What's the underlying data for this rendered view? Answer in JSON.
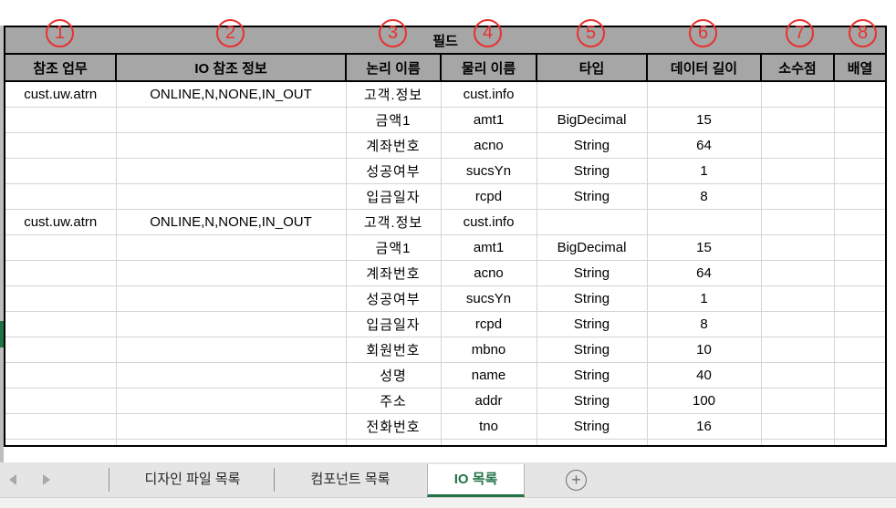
{
  "annotations": {
    "numbers": [
      "1",
      "2",
      "3",
      "4",
      "5",
      "6",
      "7",
      "8"
    ]
  },
  "table": {
    "group_header": "필드",
    "columns": [
      "참조 업무",
      "IO 참조 정보",
      "논리 이름",
      "물리 이름",
      "타입",
      "데이터 길이",
      "소수점",
      "배열"
    ],
    "rows": [
      [
        "cust.uw.atrn",
        "ONLINE,N,NONE,IN_OUT",
        "고객.정보",
        "cust.info",
        "",
        "",
        "",
        ""
      ],
      [
        "",
        "",
        "금액1",
        "amt1",
        "BigDecimal",
        "15",
        "",
        ""
      ],
      [
        "",
        "",
        "계좌번호",
        "acno",
        "String",
        "64",
        "",
        ""
      ],
      [
        "",
        "",
        "성공여부",
        "sucsYn",
        "String",
        "1",
        "",
        ""
      ],
      [
        "",
        "",
        "입금일자",
        "rcpd",
        "String",
        "8",
        "",
        ""
      ],
      [
        "cust.uw.atrn",
        "ONLINE,N,NONE,IN_OUT",
        "고객.정보",
        "cust.info",
        "",
        "",
        "",
        ""
      ],
      [
        "",
        "",
        "금액1",
        "amt1",
        "BigDecimal",
        "15",
        "",
        ""
      ],
      [
        "",
        "",
        "계좌번호",
        "acno",
        "String",
        "64",
        "",
        ""
      ],
      [
        "",
        "",
        "성공여부",
        "sucsYn",
        "String",
        "1",
        "",
        ""
      ],
      [
        "",
        "",
        "입금일자",
        "rcpd",
        "String",
        "8",
        "",
        ""
      ],
      [
        "",
        "",
        "회원번호",
        "mbno",
        "String",
        "10",
        "",
        ""
      ],
      [
        "",
        "",
        "성명",
        "name",
        "String",
        "40",
        "",
        ""
      ],
      [
        "",
        "",
        "주소",
        "addr",
        "String",
        "100",
        "",
        ""
      ],
      [
        "",
        "",
        "전화번호",
        "tno",
        "String",
        "16",
        "",
        ""
      ],
      [
        "",
        "",
        "",
        "",
        "",
        "",
        "",
        ""
      ]
    ]
  },
  "sheet_tabs": {
    "tabs": [
      {
        "label": "디자인 파일 목록",
        "active": false
      },
      {
        "label": "컴포넌트 목록",
        "active": false
      },
      {
        "label": "IO 목록",
        "active": true
      }
    ],
    "add_label": "+"
  },
  "colors": {
    "annotation_red": "#e8312f",
    "excel_green": "#217346",
    "header_gray": "#a6a6a6"
  }
}
